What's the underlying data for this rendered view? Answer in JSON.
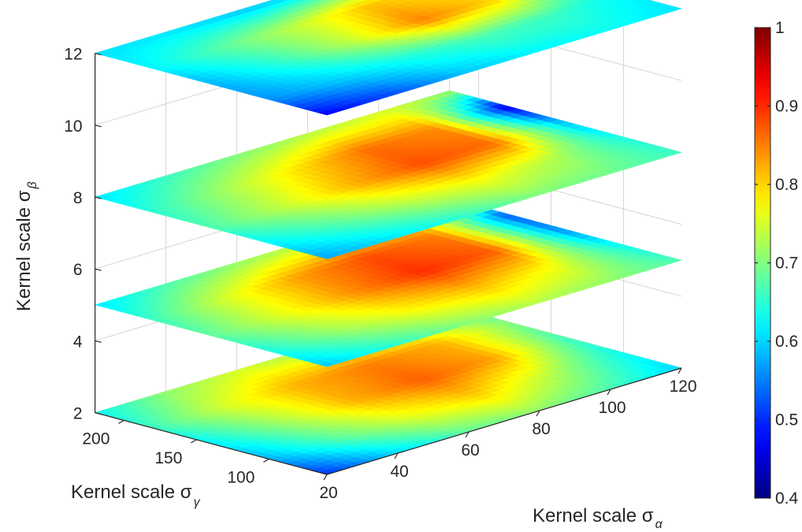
{
  "chart_data": {
    "type": "heatmap",
    "subtype": "stacked 3D slice surfaces",
    "colormap": "jet",
    "x_axis": {
      "label": "Kernel scale σ",
      "label_subscript": "α",
      "ticks": [
        20,
        40,
        60,
        80,
        100,
        120
      ],
      "range": [
        20,
        120
      ]
    },
    "y_axis": {
      "label": "Kernel scale σ",
      "label_subscript": "γ",
      "ticks": [
        100,
        150,
        200
      ],
      "range": [
        60,
        220
      ]
    },
    "z_axis": {
      "label": "Kernel scale σ",
      "label_subscript": "β",
      "ticks": [
        2,
        4,
        6,
        8,
        10,
        12
      ],
      "range": [
        2,
        12
      ]
    },
    "colorbar": {
      "ticks": [
        "0.4",
        "0.5",
        "0.6",
        "0.7",
        "0.8",
        "0.9",
        "1"
      ],
      "range": [
        0.4,
        1.0
      ]
    },
    "grid": true,
    "slices": [
      {
        "z": 2,
        "values": [
          [
            0.63,
            0.71,
            0.75,
            0.72,
            0.69,
            0.66
          ],
          [
            0.66,
            0.75,
            0.82,
            0.85,
            0.82,
            0.7
          ],
          [
            0.62,
            0.72,
            0.82,
            0.87,
            0.83,
            0.66
          ],
          [
            0.58,
            0.68,
            0.76,
            0.8,
            0.73,
            0.63
          ],
          [
            0.5,
            0.6,
            0.68,
            0.71,
            0.67,
            0.6
          ]
        ]
      },
      {
        "z": 5,
        "values": [
          [
            0.61,
            0.67,
            0.71,
            0.74,
            0.76,
            0.74
          ],
          [
            0.66,
            0.75,
            0.83,
            0.88,
            0.85,
            0.52
          ],
          [
            0.68,
            0.76,
            0.84,
            0.9,
            0.87,
            0.55
          ],
          [
            0.64,
            0.72,
            0.78,
            0.81,
            0.77,
            0.63
          ],
          [
            0.59,
            0.65,
            0.7,
            0.73,
            0.71,
            0.67
          ]
        ]
      },
      {
        "z": 8,
        "values": [
          [
            0.61,
            0.66,
            0.7,
            0.73,
            0.75,
            0.72
          ],
          [
            0.65,
            0.72,
            0.79,
            0.86,
            0.84,
            0.45
          ],
          [
            0.67,
            0.74,
            0.82,
            0.88,
            0.86,
            0.58
          ],
          [
            0.62,
            0.68,
            0.74,
            0.77,
            0.73,
            0.64
          ],
          [
            0.57,
            0.61,
            0.65,
            0.7,
            0.69,
            0.66
          ]
        ]
      },
      {
        "z": 12,
        "values": [
          [
            0.61,
            0.61,
            0.59,
            0.6,
            0.62,
            0.64
          ],
          [
            0.62,
            0.68,
            0.74,
            0.81,
            0.78,
            0.64
          ],
          [
            0.58,
            0.65,
            0.74,
            0.85,
            0.8,
            0.63
          ],
          [
            0.56,
            0.6,
            0.64,
            0.67,
            0.66,
            0.62
          ],
          [
            0.47,
            0.52,
            0.59,
            0.62,
            0.63,
            0.61
          ]
        ]
      }
    ]
  }
}
